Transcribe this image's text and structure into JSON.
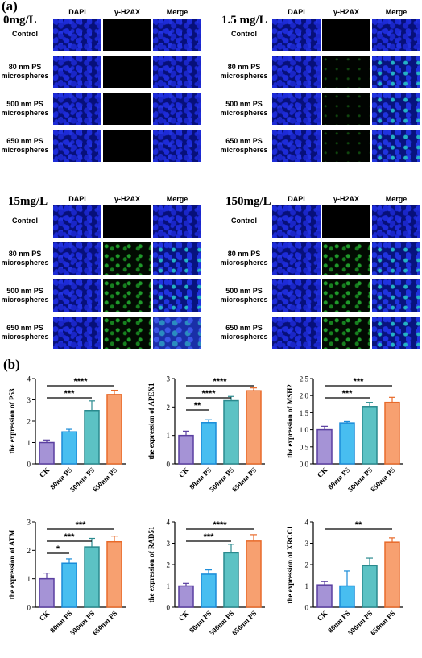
{
  "panel_labels": {
    "a": "(a)",
    "b": "(b)"
  },
  "micrographs": {
    "columns": [
      "DAPI",
      "γ-H2AX",
      "Merge"
    ],
    "rows": [
      "Control",
      "80 nm PS microspheres",
      "500 nm PS microspheres",
      "650 nm PS microspheres"
    ],
    "concentrations": [
      "0mg/L",
      "1.5 mg/L",
      "15mg/L",
      "150mg/L"
    ]
  },
  "chart_data": [
    {
      "type": "bar",
      "categories": [
        "CK",
        "80nm PS",
        "500nm PS",
        "650nm PS"
      ],
      "values": [
        1.0,
        1.5,
        2.5,
        3.25
      ],
      "errors": [
        0.12,
        0.12,
        0.45,
        0.2
      ],
      "ylabel": "the expression of P53",
      "ylim": [
        0,
        4
      ],
      "yticks": [
        0,
        1,
        2,
        3,
        4
      ],
      "significance": [
        {
          "label": "****",
          "from": 0,
          "to": 3
        },
        {
          "label": "***",
          "from": 0,
          "to": 2
        }
      ]
    },
    {
      "type": "bar",
      "categories": [
        "CK",
        "80nm PS",
        "500nm PS",
        "650nm PS"
      ],
      "values": [
        1.0,
        1.45,
        2.22,
        2.57
      ],
      "errors": [
        0.15,
        0.1,
        0.15,
        0.1
      ],
      "ylabel": "the expression of APEX1",
      "ylim": [
        0,
        3
      ],
      "yticks": [
        0,
        1,
        2,
        3
      ],
      "significance": [
        {
          "label": "****",
          "from": 0,
          "to": 3
        },
        {
          "label": "****",
          "from": 0,
          "to": 2
        },
        {
          "label": "**",
          "from": 0,
          "to": 1
        }
      ]
    },
    {
      "type": "bar",
      "categories": [
        "CK",
        "80nm PS",
        "500nm PS",
        "650nm PS"
      ],
      "values": [
        1.0,
        1.2,
        1.68,
        1.8
      ],
      "errors": [
        0.1,
        0.04,
        0.12,
        0.15
      ],
      "ylabel": "the expression of MSH2",
      "ylim": [
        0,
        2.5
      ],
      "yticks": [
        0,
        0.5,
        1.0,
        1.5,
        2.0,
        2.5
      ],
      "significance": [
        {
          "label": "***",
          "from": 0,
          "to": 3
        },
        {
          "label": "***",
          "from": 0,
          "to": 2
        }
      ]
    },
    {
      "type": "bar",
      "categories": [
        "CK",
        "80nm PS",
        "500nm PS",
        "650nm PS"
      ],
      "values": [
        1.0,
        1.55,
        2.12,
        2.3
      ],
      "errors": [
        0.2,
        0.15,
        0.3,
        0.2
      ],
      "ylabel": "the expression of ATM",
      "ylim": [
        0,
        3
      ],
      "yticks": [
        0,
        1,
        2,
        3
      ],
      "significance": [
        {
          "label": "***",
          "from": 0,
          "to": 3
        },
        {
          "label": "***",
          "from": 0,
          "to": 2
        },
        {
          "label": "*",
          "from": 0,
          "to": 1
        }
      ]
    },
    {
      "type": "bar",
      "categories": [
        "CK",
        "80nm PS",
        "500nm PS",
        "650nm PS"
      ],
      "values": [
        1.0,
        1.55,
        2.55,
        3.1
      ],
      "errors": [
        0.12,
        0.2,
        0.4,
        0.3
      ],
      "ylabel": "the expression of RAD51",
      "ylim": [
        0,
        4
      ],
      "yticks": [
        0,
        1,
        2,
        3,
        4
      ],
      "significance": [
        {
          "label": "****",
          "from": 0,
          "to": 3
        },
        {
          "label": "***",
          "from": 0,
          "to": 2
        }
      ]
    },
    {
      "type": "bar",
      "categories": [
        "CK",
        "80nm PS",
        "500nm PS",
        "650nm PS"
      ],
      "values": [
        1.05,
        1.0,
        1.95,
        3.05
      ],
      "errors": [
        0.15,
        0.7,
        0.35,
        0.2
      ],
      "ylabel": "the expression of XRCC1",
      "ylim": [
        0,
        4
      ],
      "yticks": [
        0,
        1,
        2,
        3,
        4
      ],
      "significance": [
        {
          "label": "**",
          "from": 0,
          "to": 3
        }
      ]
    }
  ],
  "bar_colors": {
    "fill": [
      "#a593d6",
      "#48bef0",
      "#5cc2c4",
      "#f7a070"
    ],
    "stroke": [
      "#5a3fa0",
      "#1a8cd8",
      "#2a8a8e",
      "#e86a2a"
    ]
  }
}
